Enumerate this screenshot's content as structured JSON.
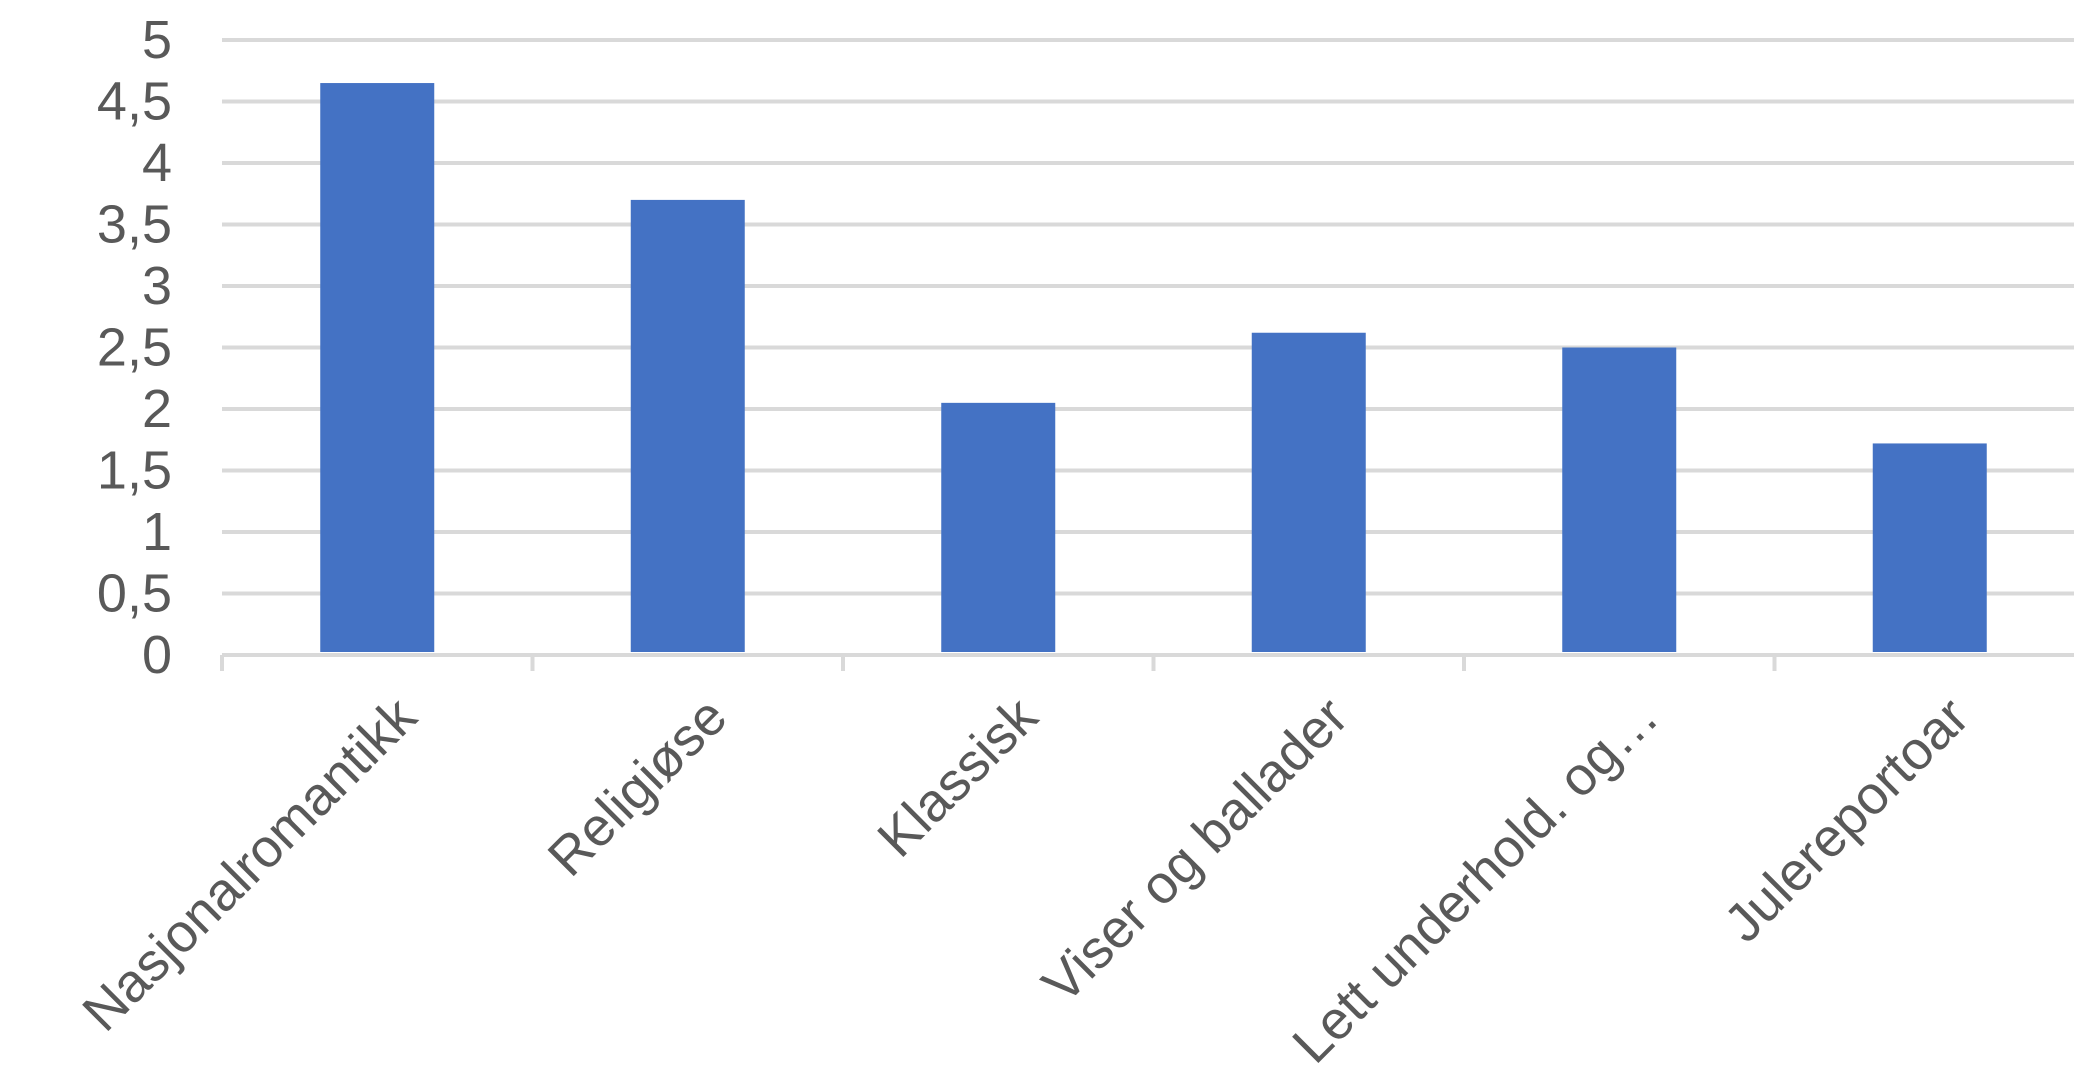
{
  "chart_data": {
    "type": "bar",
    "categories": [
      "Nasjonalromantikk",
      "Religiøse",
      "Klassisk",
      "Viser og ballader",
      "Lett underhold. og…",
      "Julereportoar"
    ],
    "values": [
      4.65,
      3.7,
      2.05,
      2.62,
      2.5,
      1.72
    ],
    "ylim": [
      0,
      5
    ],
    "y_ticks": [
      "0",
      "0,5",
      "1",
      "1,5",
      "2",
      "2,5",
      "3",
      "3,5",
      "4",
      "4,5",
      "5"
    ],
    "title": "",
    "xlabel": "",
    "ylabel": "",
    "grid": true,
    "legend": "none",
    "colors": {
      "bar": "#4472C4",
      "grid": "#D9D9D9",
      "axis": "#D9D9D9",
      "text": "#595959"
    }
  }
}
